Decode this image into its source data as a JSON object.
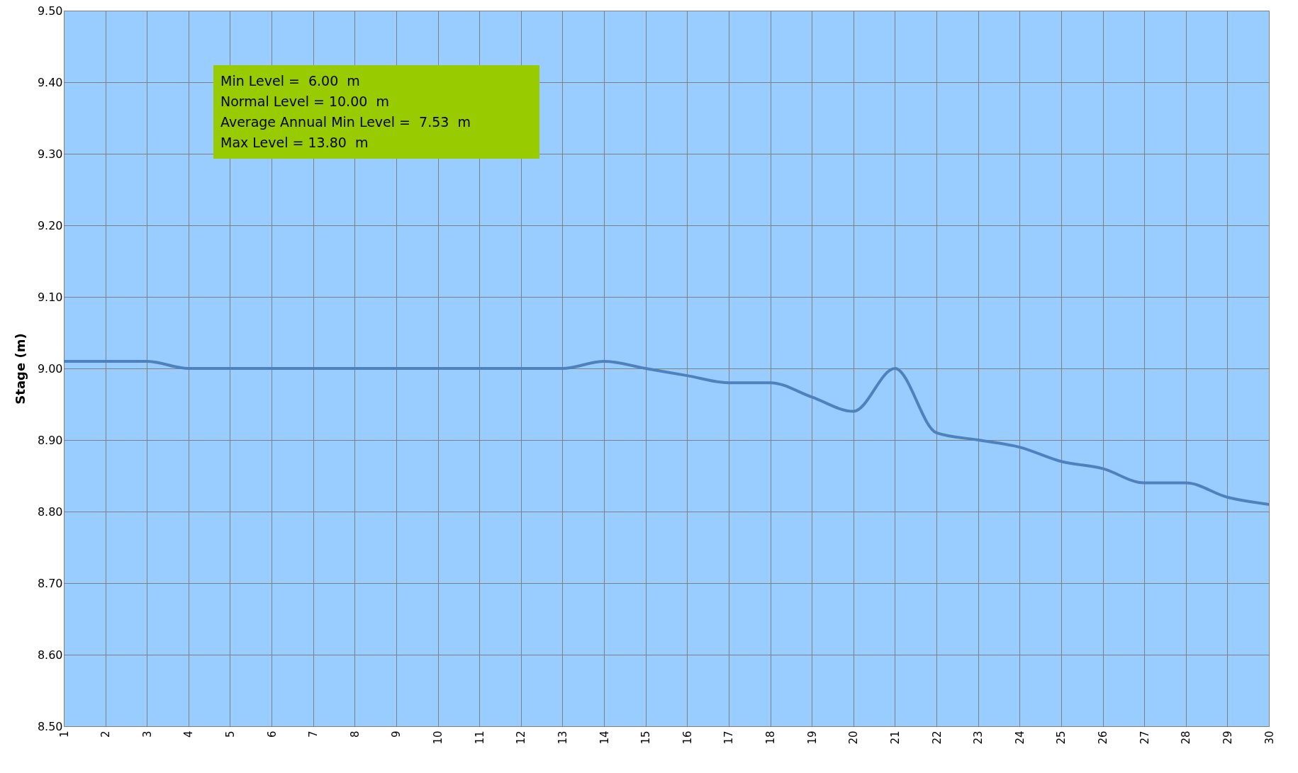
{
  "chart_data": {
    "type": "line",
    "ylabel": "Stage (m)",
    "categories": [
      "1",
      "2",
      "3",
      "4",
      "5",
      "6",
      "7",
      "8",
      "9",
      "10",
      "11",
      "12",
      "13",
      "14",
      "15",
      "16",
      "17",
      "18",
      "19",
      "20",
      "21",
      "22",
      "23",
      "24",
      "25",
      "26",
      "27",
      "28",
      "29",
      "30"
    ],
    "values": [
      9.01,
      9.01,
      9.01,
      9.0,
      9.0,
      9.0,
      9.0,
      9.0,
      9.0,
      9.0,
      9.0,
      9.0,
      9.0,
      9.01,
      9.0,
      8.99,
      8.98,
      8.98,
      8.96,
      8.94,
      9.0,
      8.91,
      8.9,
      8.89,
      8.87,
      8.86,
      8.84,
      8.84,
      8.82,
      8.81
    ],
    "color": "#4f81bd",
    "ylim": [
      8.5,
      9.5
    ],
    "yticks": [
      {
        "value": 8.5,
        "label": "8.50"
      },
      {
        "value": 8.6,
        "label": "8.60"
      },
      {
        "value": 8.7,
        "label": "8.70"
      },
      {
        "value": 8.8,
        "label": "8.80"
      },
      {
        "value": 8.9,
        "label": "8.90"
      },
      {
        "value": 9.0,
        "label": "9.00"
      },
      {
        "value": 9.1,
        "label": "9.10"
      },
      {
        "value": 9.2,
        "label": "9.20"
      },
      {
        "value": 9.3,
        "label": "9.30"
      },
      {
        "value": 9.4,
        "label": "9.40"
      },
      {
        "value": 9.5,
        "label": "9.50"
      }
    ],
    "grid": true,
    "annotations": [
      "Min Level =  6.00  m",
      "Normal Level = 10.00  m",
      "Average Annual Min Level =  7.53  m",
      "Max Level = 13.80  m"
    ]
  }
}
